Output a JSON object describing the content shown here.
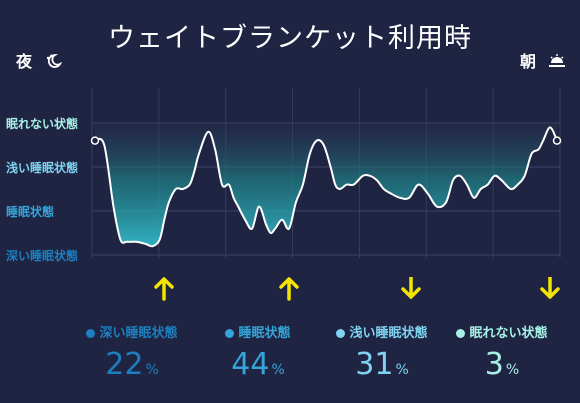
{
  "title": "ウェイトブランケット利用時",
  "night_label": "夜",
  "morning_label": "朝",
  "night_icon": "crescent-moon-icon",
  "morning_icon": "sunrise-icon",
  "colors": {
    "background": "#1f2442",
    "awake": "#a8f0e6",
    "light": "#7fd3f0",
    "sleep": "#35a4d8",
    "deep": "#1d7fc0",
    "arrow": "#f5e400"
  },
  "chart_data": {
    "type": "area",
    "title": "ウェイトブランケット利用時",
    "x_start_label": "夜",
    "x_end_label": "朝",
    "y_categories": [
      "眠れない状態",
      "浅い睡眠状態",
      "睡眠状態",
      "深い睡眠状態"
    ],
    "ylim": [
      0,
      3
    ],
    "grid": true,
    "series": [
      {
        "x": [
          0,
          0.02,
          0.04,
          0.055,
          0.07,
          0.09,
          0.11,
          0.125,
          0.14,
          0.15,
          0.16,
          0.175,
          0.19,
          0.205,
          0.215,
          0.225,
          0.245,
          0.26,
          0.275,
          0.29,
          0.3,
          0.31,
          0.325,
          0.34,
          0.355,
          0.37,
          0.38,
          0.39,
          0.405,
          0.42,
          0.435,
          0.45,
          0.465,
          0.48,
          0.495,
          0.51,
          0.52,
          0.53,
          0.545,
          0.56,
          0.58,
          0.595,
          0.61,
          0.625,
          0.64,
          0.66,
          0.68,
          0.7,
          0.72,
          0.74,
          0.76,
          0.775,
          0.79,
          0.805,
          0.82,
          0.835,
          0.85,
          0.865,
          0.88,
          0.9,
          0.915,
          0.93,
          0.945,
          0.96,
          0.97,
          0.985,
          1.0
        ],
        "y": [
          2.6,
          2.5,
          1.1,
          0.35,
          0.3,
          0.3,
          0.25,
          0.2,
          0.35,
          0.8,
          1.2,
          1.5,
          1.5,
          1.6,
          1.9,
          2.3,
          2.8,
          2.4,
          1.6,
          1.6,
          1.3,
          1.1,
          0.8,
          0.6,
          1.1,
          0.7,
          0.5,
          0.6,
          0.8,
          0.6,
          1.2,
          1.6,
          2.3,
          2.6,
          2.5,
          2.0,
          1.6,
          1.5,
          1.6,
          1.6,
          1.8,
          1.8,
          1.7,
          1.5,
          1.4,
          1.3,
          1.3,
          1.6,
          1.4,
          1.1,
          1.2,
          1.7,
          1.8,
          1.6,
          1.3,
          1.5,
          1.6,
          1.8,
          1.7,
          1.5,
          1.6,
          1.8,
          2.3,
          2.4,
          2.6,
          2.9,
          2.6
        ]
      }
    ],
    "markers": [
      {
        "x": 0.15,
        "direction": "up"
      },
      {
        "x": 0.42,
        "direction": "up"
      },
      {
        "x": 0.685,
        "direction": "down"
      },
      {
        "x": 0.985,
        "direction": "down"
      }
    ],
    "legend": [
      {
        "name": "深い睡眠状態",
        "value": 22,
        "unit": "%",
        "color": "#1d7fc0"
      },
      {
        "name": "睡眠状態",
        "value": 44,
        "unit": "%",
        "color": "#35a4d8"
      },
      {
        "name": "浅い睡眠状態",
        "value": 31,
        "unit": "%",
        "color": "#7fd3f0"
      },
      {
        "name": "眠れない状態",
        "value": 3,
        "unit": "%",
        "color": "#a8f0e6"
      }
    ]
  }
}
